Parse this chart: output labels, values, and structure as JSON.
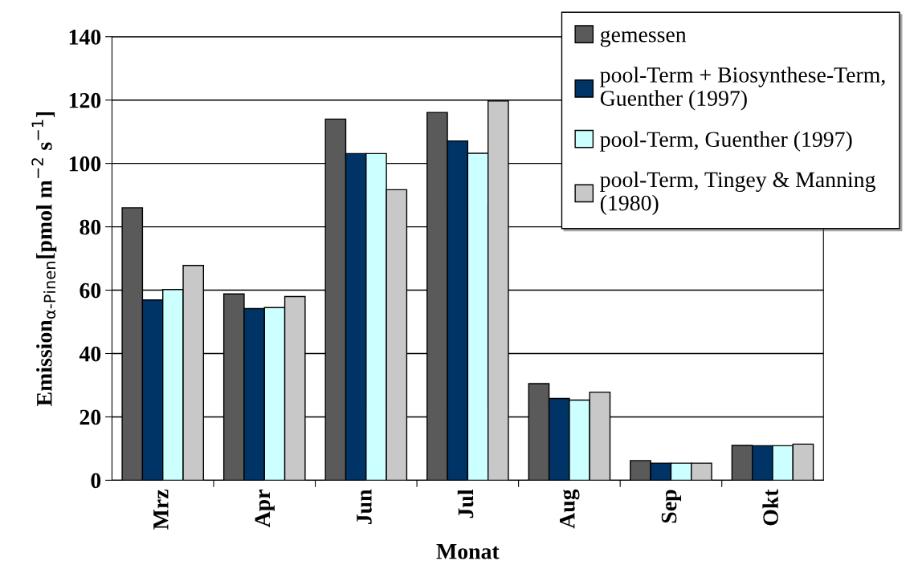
{
  "chart_data": {
    "type": "bar",
    "xlabel": "Monat",
    "ylabel": "Emission$_{α-Pinen}$[pmol m$^{−2}$ s$^{−1}$]",
    "categories": [
      "Mrz",
      "Apr",
      "Jun",
      "Jul",
      "Aug",
      "Sep",
      "Okt"
    ],
    "series": [
      {
        "name": "gemessen",
        "color": "#5a5a5a",
        "values": [
          86.0,
          58.8,
          114.0,
          116.1,
          30.5,
          6.2,
          11.0
        ]
      },
      {
        "name": "pool-Term + Biosynthese-Term,\nGuenther (1997)",
        "color": "#003366",
        "values": [
          56.9,
          54.2,
          103.1,
          107.1,
          25.8,
          5.4,
          10.9
        ]
      },
      {
        "name": "pool-Term, Guenther (1997)",
        "color": "#ccffff",
        "values": [
          60.2,
          54.5,
          103.1,
          103.2,
          25.3,
          5.4,
          10.9
        ]
      },
      {
        "name": "pool-Term, Tingey & Manning\n(1980)",
        "color": "#c8c8c8",
        "values": [
          67.8,
          58.0,
          91.7,
          119.7,
          27.8,
          5.4,
          11.4
        ]
      }
    ],
    "ylim": [
      0,
      140
    ],
    "yticks": [
      0,
      20,
      40,
      60,
      80,
      100,
      120,
      140
    ],
    "grid": "y",
    "legend": "top right"
  }
}
